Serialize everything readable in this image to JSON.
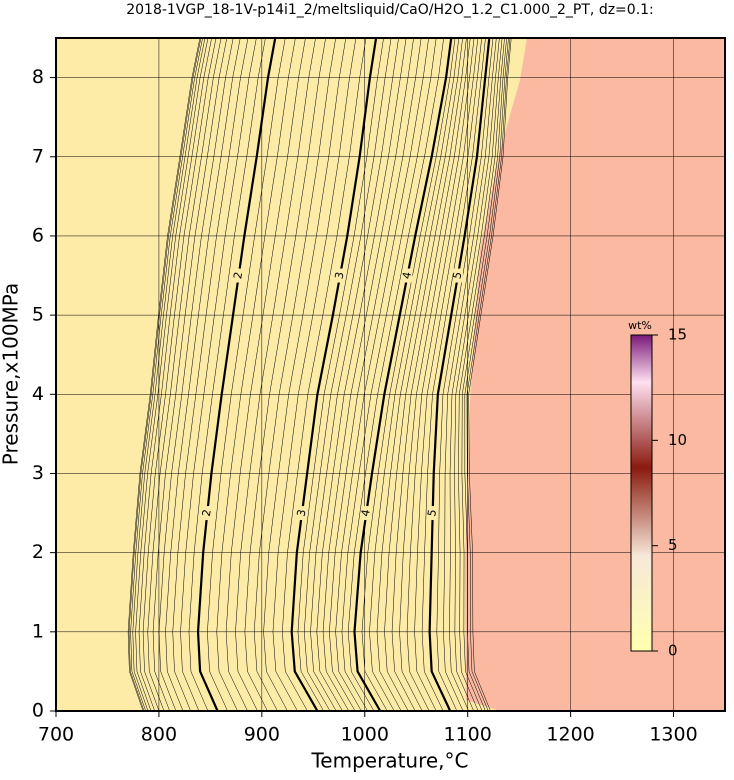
{
  "chart_data": {
    "type": "contour",
    "title": "2018-1VGP_18-1V-p14i1_2/meltsliquid/CaO/H2O_1.2_C1.000_2_PT, dz=0.1:",
    "x_label": "Temperature,°C",
    "y_label": "Pressure,x100MPa",
    "xlim": [
      700,
      1350
    ],
    "xticks": [
      700,
      800,
      900,
      1000,
      1100,
      1200,
      1300
    ],
    "ylim": [
      0,
      8.5
    ],
    "yticks": [
      0,
      1,
      2,
      3,
      4,
      5,
      6,
      7,
      8
    ],
    "grid": true,
    "contours": [
      {
        "name": "2",
        "x": [
          857,
          840,
          838,
          843,
          851,
          861,
          872,
          883,
          895,
          906,
          913
        ],
        "y": [
          0,
          0.5,
          1,
          2,
          3,
          4,
          5,
          6,
          7,
          8,
          8.5
        ]
      },
      {
        "name": "3",
        "x": [
          954,
          932,
          929,
          934,
          944,
          954,
          969,
          983,
          995,
          1005,
          1011
        ],
        "y": [
          0,
          0.5,
          1,
          2,
          3,
          4,
          5,
          6,
          7,
          8,
          8.5
        ]
      },
      {
        "name": "4",
        "x": [
          1015,
          993,
          990,
          996,
          1007,
          1019,
          1034,
          1049,
          1065,
          1079,
          1084
        ],
        "y": [
          0,
          0.5,
          1,
          2,
          3,
          4,
          5,
          6,
          7,
          8,
          8.5
        ]
      },
      {
        "name": "5",
        "x": [
          1083,
          1065,
          1063,
          1065,
          1067,
          1071,
          1084,
          1097,
          1109,
          1117,
          1121
        ],
        "y": [
          0,
          0.5,
          1,
          2,
          3,
          4,
          5,
          6,
          7,
          8,
          8.5
        ]
      }
    ],
    "colorbar": {
      "label": "wt%",
      "lim": [
        0,
        15
      ],
      "ticks": [
        0,
        5,
        10,
        15
      ]
    }
  }
}
